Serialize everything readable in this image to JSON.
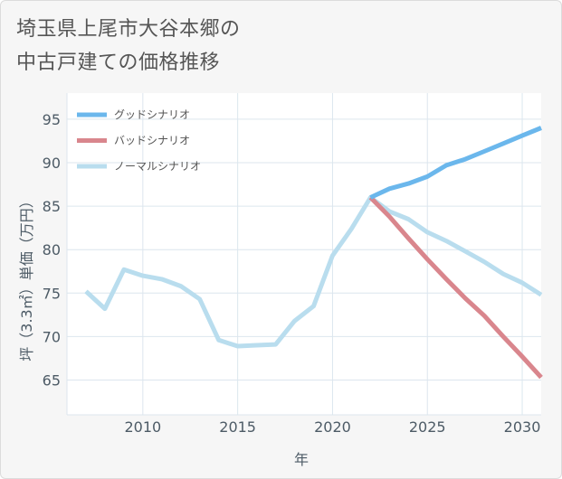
{
  "title": {
    "line1": "埼玉県上尾市大谷本郷の",
    "line2": "中古戸建ての価格推移"
  },
  "chart_data": {
    "type": "line",
    "xlabel": "年",
    "ylabel": "坪（3.3㎡）単価（万円）",
    "xlim": [
      2006,
      2031
    ],
    "ylim": [
      61,
      98
    ],
    "xticks": [
      2010,
      2015,
      2020,
      2025,
      2030
    ],
    "yticks": [
      65,
      70,
      75,
      80,
      85,
      90,
      95
    ],
    "grid": true,
    "legend_position": "top-left",
    "series": [
      {
        "name": "グッドシナリオ",
        "color": "#6bb7ec",
        "x": [
          2022,
          2023,
          2024,
          2025,
          2026,
          2027,
          2028,
          2029,
          2030,
          2031
        ],
        "values": [
          86.0,
          87.0,
          87.6,
          88.4,
          89.7,
          90.4,
          91.3,
          92.2,
          93.1,
          94.0
        ]
      },
      {
        "name": "バッドシナリオ",
        "color": "#d9868d",
        "x": [
          2022,
          2023,
          2024,
          2025,
          2026,
          2027,
          2028,
          2029,
          2030,
          2031
        ],
        "values": [
          86.0,
          83.8,
          81.3,
          78.9,
          76.6,
          74.4,
          72.4,
          70.0,
          67.7,
          65.3
        ]
      },
      {
        "name": "ノーマルシナリオ",
        "color": "#b9ddee",
        "x": [
          2007,
          2008,
          2009,
          2010,
          2011,
          2012,
          2013,
          2014,
          2015,
          2016,
          2017,
          2018,
          2019,
          2020,
          2021,
          2022,
          2023,
          2024,
          2025,
          2026,
          2027,
          2028,
          2029,
          2030,
          2031
        ],
        "values": [
          75.2,
          73.2,
          77.7,
          77.0,
          76.6,
          75.8,
          74.3,
          69.6,
          68.9,
          69.0,
          69.1,
          71.8,
          73.5,
          79.3,
          82.4,
          86.0,
          84.4,
          83.5,
          82.0,
          81.0,
          79.8,
          78.6,
          77.2,
          76.2,
          74.8
        ]
      }
    ]
  }
}
